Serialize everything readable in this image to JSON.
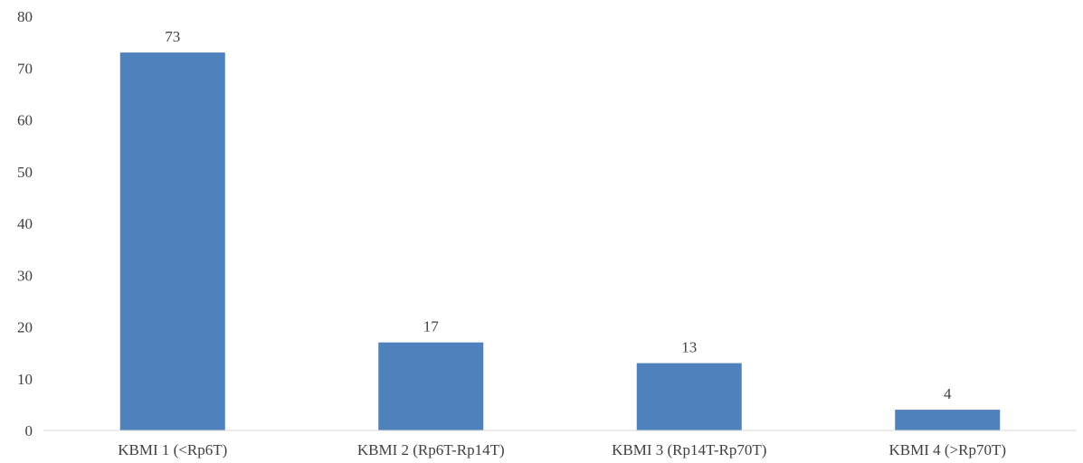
{
  "chart_data": {
    "type": "bar",
    "title": "",
    "xlabel": "",
    "ylabel": "",
    "categories": [
      "KBMI 1 (<Rp6T)",
      "KBMI 2 (Rp6T-Rp14T)",
      "KBMI 3 (Rp14T-Rp70T)",
      "KBMI 4 (>Rp70T)"
    ],
    "values": [
      73,
      17,
      13,
      4
    ],
    "data_labels": [
      "73",
      "17",
      "13",
      "4"
    ],
    "ylim": [
      0,
      80
    ],
    "y_ticks": [
      0,
      10,
      20,
      30,
      40,
      50,
      60,
      70,
      80
    ],
    "grid": false,
    "legend": "none",
    "bar_color": "#4f81bd"
  }
}
